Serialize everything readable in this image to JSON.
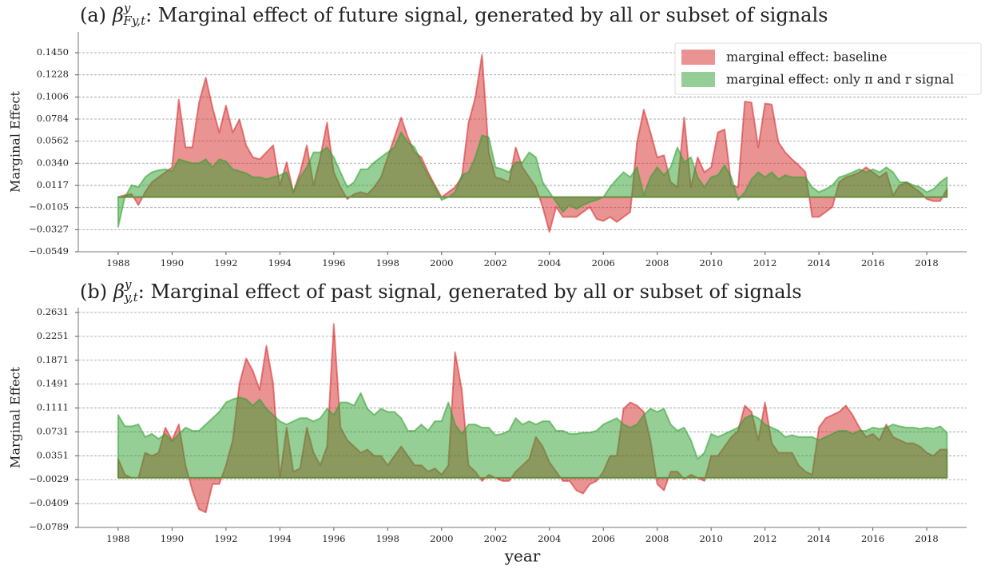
{
  "chart_data": [
    {
      "type": "area",
      "title": {
        "label": "(a)",
        "symbol": "β",
        "sup": "y",
        "sub": "Fy,t",
        "text": ": Marginal effect of future signal, generated by all or subset of signals"
      },
      "ylabel": "Marginal Effect",
      "x": [
        1988,
        1988.25,
        1988.5,
        1988.75,
        1989,
        1989.25,
        1989.5,
        1989.75,
        1990,
        1990.25,
        1990.5,
        1990.75,
        1991,
        1991.25,
        1991.5,
        1991.75,
        1992,
        1992.25,
        1992.5,
        1992.75,
        1993,
        1993.25,
        1993.5,
        1993.75,
        1994,
        1994.25,
        1994.5,
        1994.75,
        1995,
        1995.25,
        1995.5,
        1995.75,
        1996,
        1996.25,
        1996.5,
        1996.75,
        1997,
        1997.25,
        1997.5,
        1997.75,
        1998,
        1998.25,
        1998.5,
        1998.75,
        1999,
        1999.25,
        1999.5,
        1999.75,
        2000,
        2000.25,
        2000.5,
        2000.75,
        2001,
        2001.25,
        2001.5,
        2001.75,
        2002,
        2002.25,
        2002.5,
        2002.75,
        2003,
        2003.25,
        2003.5,
        2003.75,
        2004,
        2004.25,
        2004.5,
        2004.75,
        2005,
        2005.25,
        2005.5,
        2005.75,
        2006,
        2006.25,
        2006.5,
        2006.75,
        2007,
        2007.25,
        2007.5,
        2007.75,
        2008,
        2008.25,
        2008.5,
        2008.75,
        2009,
        2009.25,
        2009.5,
        2009.75,
        2010,
        2010.25,
        2010.5,
        2010.75,
        2011,
        2011.25,
        2011.5,
        2011.75,
        2012,
        2012.25,
        2012.5,
        2012.75,
        2013,
        2013.25,
        2013.5,
        2013.75,
        2014,
        2014.25,
        2014.5,
        2014.75,
        2015,
        2015.25,
        2015.5,
        2015.75,
        2016,
        2016.25,
        2016.5,
        2016.75,
        2017,
        2017.25,
        2017.5,
        2017.75,
        2018,
        2018.25,
        2018.5,
        2018.75
      ],
      "series": [
        {
          "name": "marginal effect: baseline",
          "color": "#d62728",
          "values": [
            0.0,
            0.002,
            0.003,
            -0.008,
            0.005,
            0.015,
            0.02,
            0.025,
            0.03,
            0.098,
            0.05,
            0.05,
            0.095,
            0.12,
            0.09,
            0.065,
            0.092,
            0.065,
            0.078,
            0.052,
            0.04,
            0.038,
            0.045,
            0.052,
            0.012,
            0.035,
            0.005,
            0.025,
            0.052,
            0.012,
            0.04,
            0.075,
            0.025,
            0.01,
            -0.002,
            0.003,
            0.005,
            0.003,
            0.01,
            0.02,
            0.04,
            0.06,
            0.08,
            0.06,
            0.045,
            0.04,
            0.025,
            0.012,
            0.0,
            0.005,
            0.01,
            0.02,
            0.075,
            0.1,
            0.143,
            0.045,
            0.02,
            0.018,
            0.015,
            0.05,
            0.03,
            0.02,
            0.01,
            -0.01,
            -0.035,
            -0.01,
            -0.02,
            -0.02,
            -0.02,
            -0.015,
            -0.01,
            -0.022,
            -0.024,
            -0.02,
            -0.025,
            -0.02,
            -0.015,
            0.055,
            0.088,
            0.065,
            0.04,
            0.042,
            0.015,
            0.01,
            0.08,
            0.01,
            0.04,
            0.025,
            0.03,
            0.065,
            0.068,
            0.012,
            0.01,
            0.096,
            0.095,
            0.05,
            0.094,
            0.093,
            0.055,
            0.045,
            0.038,
            0.032,
            0.025,
            -0.02,
            -0.02,
            -0.015,
            -0.01,
            0.015,
            0.02,
            0.022,
            0.025,
            0.03,
            0.025,
            0.02,
            0.025,
            0.002,
            0.012,
            0.015,
            0.01,
            0.005,
            -0.002,
            -0.004,
            -0.004,
            0.008
          ]
        },
        {
          "name": "marginal effect: only π and r signal",
          "color": "#2ca02c",
          "values": [
            -0.03,
            0.0,
            0.012,
            0.01,
            0.02,
            0.025,
            0.027,
            0.028,
            0.026,
            0.038,
            0.036,
            0.034,
            0.034,
            0.038,
            0.03,
            0.038,
            0.036,
            0.028,
            0.026,
            0.024,
            0.02,
            0.02,
            0.018,
            0.02,
            0.022,
            0.025,
            0.005,
            0.02,
            0.03,
            0.045,
            0.045,
            0.05,
            0.04,
            0.025,
            0.01,
            0.015,
            0.028,
            0.028,
            0.035,
            0.04,
            0.045,
            0.05,
            0.065,
            0.055,
            0.05,
            0.035,
            0.022,
            0.01,
            -0.003,
            0.0,
            0.005,
            0.022,
            0.025,
            0.04,
            0.062,
            0.06,
            0.03,
            0.028,
            0.025,
            0.035,
            0.035,
            0.045,
            0.04,
            0.015,
            0.005,
            -0.005,
            -0.015,
            -0.008,
            -0.012,
            -0.008,
            -0.005,
            -0.003,
            0.0,
            0.01,
            0.018,
            0.025,
            0.02,
            0.03,
            0.002,
            0.02,
            0.03,
            0.022,
            0.03,
            0.05,
            0.035,
            0.04,
            0.02,
            0.01,
            0.02,
            0.022,
            0.032,
            0.02,
            -0.003,
            0.005,
            0.018,
            0.025,
            0.02,
            0.025,
            0.018,
            0.022,
            0.02,
            0.02,
            0.02,
            0.01,
            0.005,
            0.008,
            0.012,
            0.02,
            0.022,
            0.025,
            0.028,
            0.025,
            0.028,
            0.025,
            0.03,
            0.025,
            0.015,
            0.015,
            0.012,
            0.01,
            0.005,
            0.008,
            0.015,
            0.02
          ]
        }
      ],
      "xlim": [
        1986.52,
        2019.48
      ],
      "ylim": [
        -0.0549,
        0.1659
      ],
      "xticks": [
        1988,
        1990,
        1992,
        1994,
        1996,
        1998,
        2000,
        2002,
        2004,
        2006,
        2008,
        2010,
        2012,
        2014,
        2016,
        2018
      ],
      "yticks": [
        {
          "value": 0.145,
          "label": "0.1450"
        },
        0.1228,
        0.1006,
        0.0784,
        0.0562,
        {
          "value": 0.034,
          "label": "0.0340"
        },
        0.0117,
        {
          "value": -0.0105,
          "label": "−0.0105"
        },
        {
          "value": -0.0327,
          "label": "−0.0327"
        },
        {
          "value": -0.0549,
          "label": "−0.0549"
        }
      ],
      "grid": true,
      "legend": "upper right"
    },
    {
      "type": "area",
      "title": {
        "label": "(b)",
        "symbol": "β",
        "sup": "y",
        "sub": "y,t",
        "text": ": Marginal effect of past signal, generated by all or subset of signals"
      },
      "ylabel": "Marginal Effect",
      "xlabel": "year",
      "x": [
        1988,
        1988.25,
        1988.5,
        1988.75,
        1989,
        1989.25,
        1989.5,
        1989.75,
        1990,
        1990.25,
        1990.5,
        1990.75,
        1991,
        1991.25,
        1991.5,
        1991.75,
        1992,
        1992.25,
        1992.5,
        1992.75,
        1993,
        1993.25,
        1993.5,
        1993.75,
        1994,
        1994.25,
        1994.5,
        1994.75,
        1995,
        1995.25,
        1995.5,
        1995.75,
        1996,
        1996.25,
        1996.5,
        1996.75,
        1997,
        1997.25,
        1997.5,
        1997.75,
        1998,
        1998.25,
        1998.5,
        1998.75,
        1999,
        1999.25,
        1999.5,
        1999.75,
        2000,
        2000.25,
        2000.5,
        2000.75,
        2001,
        2001.25,
        2001.5,
        2001.75,
        2002,
        2002.25,
        2002.5,
        2002.75,
        2003,
        2003.25,
        2003.5,
        2003.75,
        2004,
        2004.25,
        2004.5,
        2004.75,
        2005,
        2005.25,
        2005.5,
        2005.75,
        2006,
        2006.25,
        2006.5,
        2006.75,
        2007,
        2007.25,
        2007.5,
        2007.75,
        2008,
        2008.25,
        2008.5,
        2008.75,
        2009,
        2009.25,
        2009.5,
        2009.75,
        2010,
        2010.25,
        2010.5,
        2010.75,
        2011,
        2011.25,
        2011.5,
        2011.75,
        2012,
        2012.25,
        2012.5,
        2012.75,
        2013,
        2013.25,
        2013.5,
        2013.75,
        2014,
        2014.25,
        2014.5,
        2014.75,
        2015,
        2015.25,
        2015.5,
        2015.75,
        2016,
        2016.25,
        2016.5,
        2016.75,
        2017,
        2017.25,
        2017.5,
        2017.75,
        2018,
        2018.25,
        2018.5,
        2018.75
      ],
      "series": [
        {
          "color": "#d62728",
          "values": [
            0.03,
            0.005,
            0.0,
            0.0,
            0.04,
            0.035,
            0.04,
            0.08,
            0.06,
            0.085,
            0.02,
            -0.02,
            -0.05,
            -0.055,
            -0.01,
            -0.01,
            0.02,
            0.06,
            0.15,
            0.19,
            0.17,
            0.14,
            0.21,
            0.15,
            0.0,
            0.08,
            0.01,
            0.015,
            0.08,
            0.04,
            0.02,
            0.05,
            0.245,
            0.08,
            0.06,
            0.05,
            0.04,
            0.045,
            0.035,
            0.035,
            0.02,
            0.035,
            0.05,
            0.035,
            0.02,
            0.02,
            0.01,
            0.015,
            0.005,
            0.02,
            0.2,
            0.14,
            0.02,
            0.01,
            -0.005,
            0.005,
            0.0,
            -0.005,
            -0.005,
            0.01,
            0.02,
            0.03,
            0.065,
            0.05,
            0.025,
            0.01,
            -0.005,
            -0.005,
            -0.02,
            -0.025,
            -0.01,
            -0.005,
            0.01,
            0.035,
            0.035,
            0.11,
            0.12,
            0.115,
            0.105,
            0.06,
            -0.01,
            -0.02,
            0.01,
            0.01,
            -0.002,
            0.005,
            0.0,
            -0.005,
            0.035,
            0.035,
            0.05,
            0.065,
            0.075,
            0.115,
            0.105,
            0.06,
            0.12,
            0.055,
            0.04,
            0.04,
            0.04,
            0.02,
            0.01,
            0.005,
            0.08,
            0.095,
            0.1,
            0.105,
            0.115,
            0.1,
            0.08,
            0.065,
            0.07,
            0.06,
            0.085,
            0.065,
            0.06,
            0.055,
            0.055,
            0.05,
            0.04,
            0.035,
            0.045,
            0.045
          ]
        },
        {
          "color": "#2ca02c",
          "values": [
            0.1,
            0.082,
            0.082,
            0.085,
            0.065,
            0.07,
            0.062,
            0.07,
            0.058,
            0.07,
            0.08,
            0.075,
            0.075,
            0.085,
            0.095,
            0.105,
            0.12,
            0.125,
            0.128,
            0.125,
            0.115,
            0.125,
            0.11,
            0.1,
            0.09,
            0.085,
            0.09,
            0.095,
            0.095,
            0.09,
            0.095,
            0.11,
            0.1,
            0.12,
            0.12,
            0.115,
            0.135,
            0.11,
            0.1,
            0.11,
            0.105,
            0.105,
            0.095,
            0.075,
            0.075,
            0.085,
            0.075,
            0.09,
            0.09,
            0.12,
            0.085,
            0.07,
            0.085,
            0.085,
            0.08,
            0.08,
            0.068,
            0.07,
            0.075,
            0.095,
            0.085,
            0.09,
            0.085,
            0.09,
            0.09,
            0.075,
            0.075,
            0.07,
            0.07,
            0.072,
            0.072,
            0.075,
            0.085,
            0.09,
            0.095,
            0.085,
            0.08,
            0.085,
            0.1,
            0.11,
            0.105,
            0.11,
            0.085,
            0.075,
            0.08,
            0.06,
            0.03,
            0.04,
            0.07,
            0.065,
            0.07,
            0.075,
            0.08,
            0.095,
            0.1,
            0.095,
            0.085,
            0.08,
            0.075,
            0.065,
            0.068,
            0.065,
            0.065,
            0.065,
            0.06,
            0.065,
            0.07,
            0.075,
            0.075,
            0.07,
            0.075,
            0.075,
            0.08,
            0.078,
            0.08,
            0.085,
            0.082,
            0.08,
            0.08,
            0.078,
            0.08,
            0.078,
            0.082,
            0.072
          ]
        }
      ],
      "xlim": [
        1986.52,
        2019.48
      ],
      "ylim": [
        -0.0789,
        0.2707
      ],
      "xticks": [
        1988,
        1990,
        1992,
        1994,
        1996,
        1998,
        2000,
        2002,
        2004,
        2006,
        2008,
        2010,
        2012,
        2014,
        2016,
        2018
      ],
      "yticks": [
        0.2631,
        0.2251,
        0.1871,
        0.1491,
        0.1111,
        0.0731,
        0.0351,
        {
          "value": -0.0029,
          "label": "−0.0029"
        },
        {
          "value": -0.0409,
          "label": "−0.0409"
        },
        {
          "value": -0.0789,
          "label": "−0.0789"
        }
      ],
      "grid": true
    }
  ]
}
